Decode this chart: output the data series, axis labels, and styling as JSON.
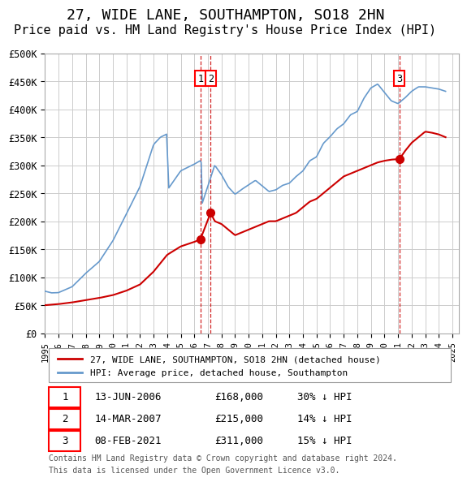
{
  "title": "27, WIDE LANE, SOUTHAMPTON, SO18 2HN",
  "subtitle": "Price paid vs. HM Land Registry's House Price Index (HPI)",
  "title_fontsize": 13,
  "subtitle_fontsize": 11,
  "ylabel_ticks": [
    "£0",
    "£50K",
    "£100K",
    "£150K",
    "£200K",
    "£250K",
    "£300K",
    "£350K",
    "£400K",
    "£450K",
    "£500K"
  ],
  "ytick_vals": [
    0,
    50000,
    100000,
    150000,
    200000,
    250000,
    300000,
    350000,
    400000,
    450000,
    500000
  ],
  "ylim": [
    0,
    500000
  ],
  "xlim_start": 1995.0,
  "xlim_end": 2025.5,
  "red_color": "#cc0000",
  "blue_color": "#6699cc",
  "grid_color": "#cccccc",
  "bg_color": "#ffffff",
  "transactions": [
    {
      "num": 1,
      "date": "13-JUN-2006",
      "price": 168000,
      "year": 2006.45,
      "pct": "30%",
      "dir": "↓"
    },
    {
      "num": 2,
      "date": "14-MAR-2007",
      "price": 215000,
      "year": 2007.2,
      "pct": "14%",
      "dir": "↓"
    },
    {
      "num": 3,
      "date": "08-FEB-2021",
      "price": 311000,
      "year": 2021.1,
      "pct": "15%",
      "dir": "↓"
    }
  ],
  "legend_line1": "27, WIDE LANE, SOUTHAMPTON, SO18 2HN (detached house)",
  "legend_line2": "HPI: Average price, detached house, Southampton",
  "footer1": "Contains HM Land Registry data © Crown copyright and database right 2024.",
  "footer2": "This data is licensed under the Open Government Licence v3.0."
}
